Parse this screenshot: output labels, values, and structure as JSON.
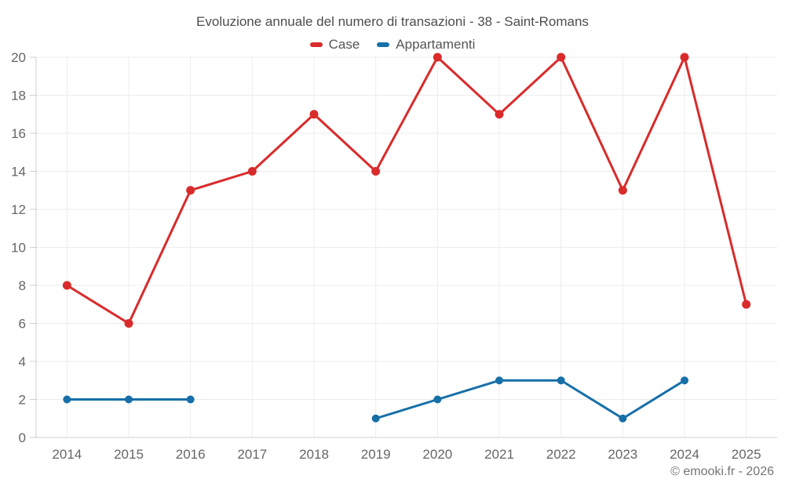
{
  "title": "Evoluzione annuale del numero di transazioni - 38 - Saint-Romans",
  "footer": "© emooki.fr - 2026",
  "chart_data": {
    "type": "line",
    "title": "Evoluzione annuale del numero di transazioni - 38 - Saint-Romans",
    "categories": [
      "2014",
      "2015",
      "2016",
      "2017",
      "2018",
      "2019",
      "2020",
      "2021",
      "2022",
      "2023",
      "2024",
      "2025"
    ],
    "series": [
      {
        "name": "Case",
        "color": "#d92b2b",
        "values": [
          8,
          6,
          13,
          14,
          17,
          14,
          20,
          17,
          20,
          13,
          20,
          7
        ]
      },
      {
        "name": "Appartamenti",
        "color": "#176fa8",
        "values": [
          2,
          2,
          2,
          null,
          null,
          1,
          2,
          3,
          3,
          1,
          3,
          null
        ]
      }
    ],
    "xlabel": "",
    "ylabel": "",
    "ylim": [
      0,
      20
    ],
    "ytick_step": 2,
    "grid": true,
    "legend_position": "top",
    "colors": {
      "grid": "#ececec",
      "axis": "#cfcfcf",
      "tick_label": "#666666"
    }
  }
}
